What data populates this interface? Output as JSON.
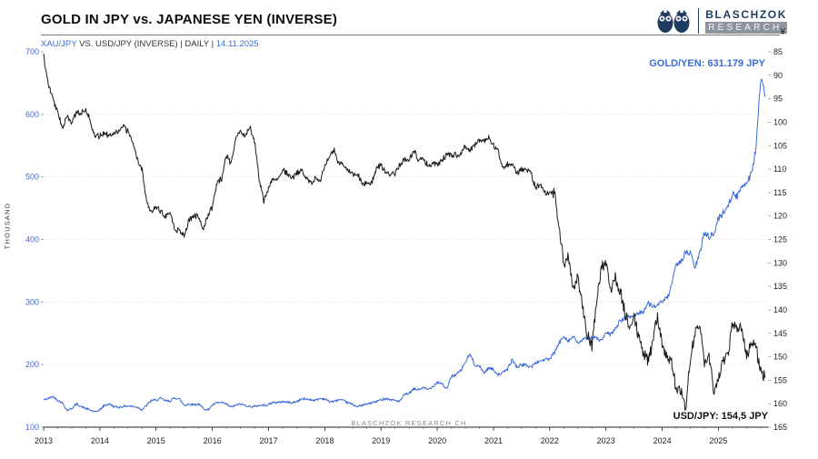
{
  "header": {
    "title": "GOLD IN JPY vs. JAPANESE YEN (INVERSE)",
    "subtitle_series": "XAU/JPY",
    "subtitle_middle": " VS. USD/JPY (INVERSE) | DAILY | ",
    "subtitle_date": "14.11.2025"
  },
  "logo": {
    "line1": "BLASCHZOK",
    "line2": "RESEARCH"
  },
  "annotations": {
    "watermark": "BLASCHZOK RESEARCH CH"
  },
  "colors": {
    "accent_blue": "#3b6bd8",
    "line_black": "#1a1a1a",
    "logo_navy": "#1e3a5f",
    "grid_gray": "#cfcfcf"
  },
  "chart_data": {
    "type": "line",
    "title": "GOLD IN JPY vs. JAPANESE YEN (INVERSE)",
    "x_start_year": 2013,
    "x_step_months": 1,
    "x_year_ticks": [
      2013,
      2014,
      2015,
      2016,
      2017,
      2018,
      2019,
      2020,
      2021,
      2022,
      2023,
      2024,
      2025
    ],
    "left_axis": {
      "unit": "THOUSAND",
      "min": 100,
      "max": 700,
      "ticks": [
        700,
        600,
        500,
        400,
        300,
        200,
        100
      ]
    },
    "right_axis": {
      "unit": "¥",
      "min": 85,
      "max": 165,
      "inverted": true,
      "ticks": [
        85,
        90,
        95,
        100,
        105,
        110,
        115,
        120,
        125,
        130,
        135,
        140,
        145,
        150,
        155,
        160,
        165
      ]
    },
    "series": [
      {
        "name": "XAU/JPY",
        "axis": "left",
        "color": "#3b6bd8",
        "last_value": 631.179,
        "last_value_label": "GOLD/YEN: 631.179 JPY",
        "values": [
          144,
          146,
          149,
          143,
          139,
          127,
          130,
          137,
          133,
          130,
          127,
          124,
          128,
          135,
          137,
          133,
          132,
          133,
          134,
          133,
          132,
          128,
          135,
          143,
          143,
          146,
          142,
          142,
          147,
          145,
          135,
          137,
          136,
          137,
          131,
          127,
          135,
          139,
          139,
          137,
          132,
          135,
          137,
          135,
          133,
          133,
          135,
          135,
          136,
          140,
          139,
          141,
          140,
          139,
          141,
          145,
          145,
          144,
          143,
          146,
          145,
          141,
          141,
          144,
          142,
          139,
          136,
          133,
          135,
          137,
          139,
          141,
          144,
          146,
          144,
          143,
          141,
          152,
          154,
          161,
          160,
          163,
          160,
          165,
          172,
          170,
          160,
          181,
          184,
          190,
          204,
          217,
          200,
          197,
          187,
          195,
          192,
          184,
          187,
          193,
          208,
          196,
          200,
          199,
          196,
          203,
          206,
          208,
          209,
          219,
          234,
          246,
          238,
          245,
          234,
          240,
          241,
          244,
          242,
          238,
          250,
          248,
          257,
          270,
          273,
          276,
          278,
          283,
          285,
          298,
          294,
          293,
          302,
          305,
          325,
          361,
          365,
          379,
          378,
          355,
          377,
          412,
          405,
          408,
          434,
          442,
          455,
          472,
          468,
          486,
          492,
          505,
          545,
          655,
          631.179
        ]
      },
      {
        "name": "USD/JPY (INVERSE)",
        "axis": "right",
        "color": "#1a1a1a",
        "last_value": 154.5,
        "last_value_label": "USD/JPY: 154,5 JPY",
        "values": [
          86,
          92,
          95,
          98,
          101,
          99,
          100,
          98,
          98,
          97,
          100,
          103,
          103,
          102,
          103,
          102,
          102,
          101,
          102,
          104,
          108,
          110,
          117,
          119,
          118,
          119,
          120,
          119,
          123,
          123,
          124,
          121,
          120,
          120,
          123,
          120,
          118,
          113,
          112,
          107,
          109,
          103,
          102,
          103,
          101,
          104,
          112,
          117,
          114,
          112,
          112,
          110,
          111,
          112,
          111,
          110,
          112,
          113,
          112,
          113,
          109,
          107,
          106,
          109,
          109,
          110,
          111,
          111,
          113,
          113,
          113,
          110,
          109,
          111,
          111,
          111,
          109,
          108,
          108,
          106,
          108,
          108,
          109,
          109,
          109,
          108,
          107,
          107,
          107,
          107,
          105,
          106,
          105,
          104,
          104,
          103,
          105,
          106,
          110,
          109,
          109,
          111,
          110,
          110,
          111,
          114,
          113,
          115,
          115,
          115,
          122,
          130,
          129,
          136,
          133,
          139,
          145,
          148,
          138,
          131,
          130,
          136,
          133,
          136,
          140,
          144,
          141,
          146,
          149,
          151,
          147,
          141,
          148,
          150,
          151,
          157,
          157,
          161,
          150,
          145,
          143,
          152,
          150,
          157,
          155,
          151,
          150,
          143,
          144,
          144,
          150,
          147,
          148,
          153,
          154.5
        ]
      }
    ]
  }
}
